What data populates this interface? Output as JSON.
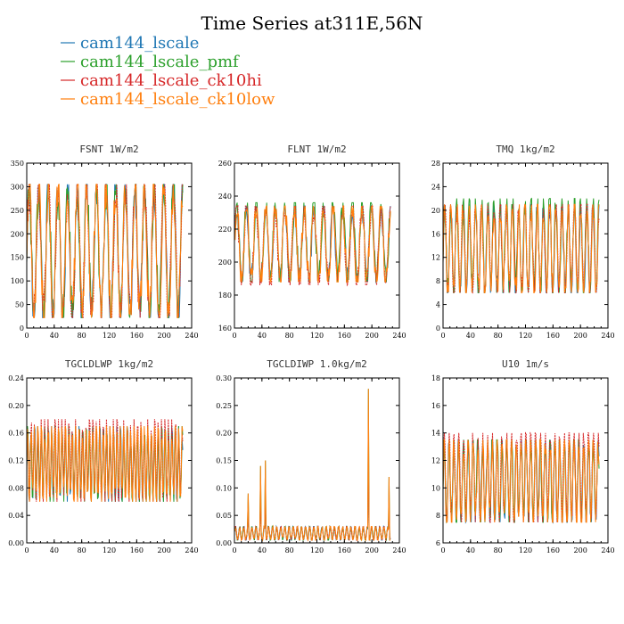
{
  "figure": {
    "title": "Time Series at311E,56N"
  },
  "chart_data": [
    {
      "type": "line",
      "title": "FSNT   1W/m2",
      "xlim": [
        0,
        240
      ],
      "ylim": [
        0,
        350
      ],
      "xticks": [
        "0",
        "40",
        "80",
        "120",
        "160",
        "200",
        "240"
      ],
      "yticks": [
        "0",
        "50",
        "100",
        "150",
        "200",
        "250",
        "300",
        "350"
      ],
      "x": [
        0,
        227
      ],
      "series": [
        {
          "name": "cam144_lscale",
          "color": "#1f77b4",
          "period": 14,
          "min": 22,
          "max": 305
        },
        {
          "name": "cam144_lscale_pmf",
          "color": "#2ca02c",
          "period": 14,
          "min": 22,
          "max": 305
        },
        {
          "name": "cam144_lscale_ck10hi",
          "color": "#d62728",
          "period": 14,
          "min": 22,
          "max": 305
        },
        {
          "name": "cam144_lscale_ck10low",
          "color": "#ff7f0e",
          "period": 14,
          "min": 22,
          "max": 305
        }
      ]
    },
    {
      "type": "line",
      "title": "FLNT   1W/m2",
      "xlim": [
        0,
        240
      ],
      "ylim": [
        160,
        260
      ],
      "xticks": [
        "0",
        "40",
        "80",
        "120",
        "160",
        "200",
        "240"
      ],
      "yticks": [
        "160",
        "180",
        "200",
        "220",
        "240",
        "260"
      ],
      "x": [
        0,
        227
      ],
      "series": [
        {
          "name": "cam144_lscale",
          "color": "#1f77b4",
          "period": 14,
          "min": 188,
          "max": 234
        },
        {
          "name": "cam144_lscale_pmf",
          "color": "#2ca02c",
          "period": 14,
          "min": 188,
          "max": 236
        },
        {
          "name": "cam144_lscale_ck10hi",
          "color": "#d62728",
          "period": 14,
          "min": 186,
          "max": 234
        },
        {
          "name": "cam144_lscale_ck10low",
          "color": "#ff7f0e",
          "period": 14,
          "min": 188,
          "max": 234
        }
      ]
    },
    {
      "type": "line",
      "title": "TMQ   1kg/m2",
      "xlim": [
        0,
        240
      ],
      "ylim": [
        0,
        28
      ],
      "xticks": [
        "0",
        "40",
        "80",
        "120",
        "160",
        "200",
        "240"
      ],
      "yticks": [
        "0",
        "4",
        "8",
        "12",
        "16",
        "20",
        "24",
        "28"
      ],
      "x": [
        0,
        227
      ],
      "series": [
        {
          "name": "cam144_lscale",
          "color": "#1f77b4",
          "period": 9,
          "min": 6,
          "max": 21
        },
        {
          "name": "cam144_lscale_pmf",
          "color": "#2ca02c",
          "period": 9,
          "min": 6,
          "max": 22
        },
        {
          "name": "cam144_lscale_ck10hi",
          "color": "#d62728",
          "period": 9,
          "min": 6,
          "max": 21
        },
        {
          "name": "cam144_lscale_ck10low",
          "color": "#ff7f0e",
          "period": 9,
          "min": 6,
          "max": 21
        }
      ]
    },
    {
      "type": "line",
      "title": "TGCLDLWP   1kg/m2",
      "xlim": [
        0,
        240
      ],
      "ylim": [
        0,
        0.24
      ],
      "xticks": [
        "0",
        "40",
        "80",
        "120",
        "160",
        "200",
        "240"
      ],
      "yticks": [
        "0.00",
        "0.04",
        "0.08",
        "0.12",
        "0.16",
        "0.20",
        "0.24"
      ],
      "x": [
        0,
        227
      ],
      "series": [
        {
          "name": "cam144_lscale",
          "color": "#1f77b4",
          "period": 5,
          "min": 0.06,
          "max": 0.17
        },
        {
          "name": "cam144_lscale_pmf",
          "color": "#2ca02c",
          "period": 5,
          "min": 0.06,
          "max": 0.17
        },
        {
          "name": "cam144_lscale_ck10hi",
          "color": "#d62728",
          "period": 5,
          "min": 0.06,
          "max": 0.18
        },
        {
          "name": "cam144_lscale_ck10low",
          "color": "#ff7f0e",
          "period": 5,
          "min": 0.06,
          "max": 0.17
        }
      ]
    },
    {
      "type": "line",
      "title": "TGCLDIWP   1.0kg/m2",
      "xlim": [
        0,
        240
      ],
      "ylim": [
        0,
        0.3
      ],
      "xticks": [
        "0",
        "40",
        "80",
        "120",
        "160",
        "200",
        "240"
      ],
      "yticks": [
        "0.00",
        "0.05",
        "0.10",
        "0.15",
        "0.20",
        "0.25",
        "0.30"
      ],
      "x": [
        0,
        227
      ],
      "series": [
        {
          "name": "cam144_lscale",
          "color": "#1f77b4",
          "period": 6,
          "min": 0.005,
          "max": 0.03
        },
        {
          "name": "cam144_lscale_pmf",
          "color": "#2ca02c",
          "period": 6,
          "min": 0.005,
          "max": 0.03
        },
        {
          "name": "cam144_lscale_ck10hi",
          "color": "#d62728",
          "period": 6,
          "min": 0.005,
          "max": 0.03
        },
        {
          "name": "cam144_lscale_ck10low",
          "color": "#ff7f0e",
          "period": 6,
          "min": 0.005,
          "max": 0.03
        }
      ],
      "spikes": [
        [
          20,
          0.09
        ],
        [
          38,
          0.14
        ],
        [
          45,
          0.15
        ],
        [
          195,
          0.28
        ],
        [
          225,
          0.12
        ]
      ]
    },
    {
      "type": "line",
      "title": "U10   1m/s",
      "xlim": [
        0,
        240
      ],
      "ylim": [
        6,
        18
      ],
      "xticks": [
        "0",
        "40",
        "80",
        "120",
        "160",
        "200",
        "240"
      ],
      "yticks": [
        "6",
        "8",
        "10",
        "12",
        "14",
        "16",
        "18"
      ],
      "x": [
        0,
        227
      ],
      "series": [
        {
          "name": "cam144_lscale",
          "color": "#1f77b4",
          "period": 7,
          "min": 7.5,
          "max": 13.5
        },
        {
          "name": "cam144_lscale_pmf",
          "color": "#2ca02c",
          "period": 7,
          "min": 7.5,
          "max": 13.5
        },
        {
          "name": "cam144_lscale_ck10hi",
          "color": "#d62728",
          "period": 7,
          "min": 7.5,
          "max": 14
        },
        {
          "name": "cam144_lscale_ck10low",
          "color": "#ff7f0e",
          "period": 7,
          "min": 7.5,
          "max": 13.5
        }
      ]
    }
  ],
  "legend": [
    {
      "label": "cam144_lscale",
      "color": "#1f77b4"
    },
    {
      "label": "cam144_lscale_pmf",
      "color": "#2ca02c"
    },
    {
      "label": "cam144_lscale_ck10hi",
      "color": "#d62728"
    },
    {
      "label": "cam144_lscale_ck10low",
      "color": "#ff7f0e"
    }
  ]
}
